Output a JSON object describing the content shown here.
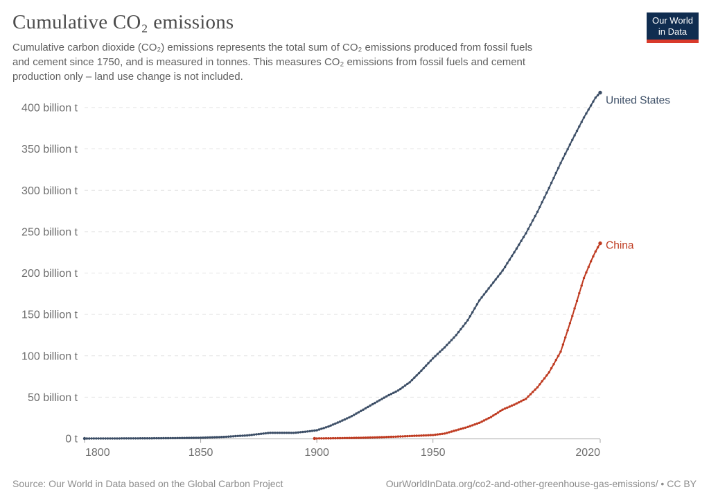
{
  "header": {
    "title": "Cumulative CO₂ emissions",
    "subtitle_lines": [
      "Cumulative carbon dioxide (CO₂) emissions represents the total sum of CO₂ emissions produced from fossil fuels",
      "and cement since 1750, and is measured in tonnes. This measures CO₂ emissions from fossil fuels and cement",
      "production only – land use change is not included."
    ],
    "logo": {
      "line1": "Our World",
      "line2": "in Data"
    }
  },
  "footer": {
    "source": "Source: Our World in Data based on the Global Carbon Project",
    "url": "OurWorldInData.org/co2-and-other-greenhouse-gas-emissions/",
    "bullet": "•",
    "license": "CC BY"
  },
  "colors": {
    "united_states": "#3C4E66",
    "china": "#BF3B21",
    "grid": "#e2e2e2",
    "axis": "#a3a3a3",
    "tick_text": "#6e6e6e",
    "logo_navy": "#102d50",
    "logo_red": "#d93a2b"
  },
  "chart_data": {
    "type": "line",
    "title": "Cumulative CO₂ emissions",
    "unit": "billion t",
    "xlabel": "",
    "ylabel": "",
    "x_domain": [
      1800,
      2022
    ],
    "y_domain": [
      0,
      400
    ],
    "x_ticks": [
      1800,
      1850,
      1900,
      1950,
      2020
    ],
    "y_ticks": [
      {
        "value": 0,
        "label": "0 t"
      },
      {
        "value": 50,
        "label": "50 billion t"
      },
      {
        "value": 100,
        "label": "100 billion t"
      },
      {
        "value": 150,
        "label": "150 billion t"
      },
      {
        "value": 200,
        "label": "200 billion t"
      },
      {
        "value": 250,
        "label": "250 billion t"
      },
      {
        "value": 300,
        "label": "300 billion t"
      },
      {
        "value": 350,
        "label": "350 billion t"
      },
      {
        "value": 400,
        "label": "400 billion t"
      }
    ],
    "grid": "horizontal-dashed",
    "legend_position": "end-of-line-labels",
    "marker": "circle-every-year",
    "series": [
      {
        "name": "United States",
        "color": "#3C4E66",
        "label_dy": 16,
        "anchors": [
          [
            1800,
            0.03
          ],
          [
            1810,
            0.08
          ],
          [
            1820,
            0.16
          ],
          [
            1830,
            0.3
          ],
          [
            1840,
            0.55
          ],
          [
            1850,
            1.0
          ],
          [
            1860,
            2.0
          ],
          [
            1870,
            3.8
          ],
          [
            1880,
            7
          ],
          [
            1890,
            6.9
          ],
          [
            1895,
            8.2
          ],
          [
            1900,
            10
          ],
          [
            1905,
            14.5
          ],
          [
            1910,
            20.5
          ],
          [
            1915,
            27
          ],
          [
            1920,
            35
          ],
          [
            1925,
            43
          ],
          [
            1930,
            51
          ],
          [
            1935,
            58
          ],
          [
            1940,
            68
          ],
          [
            1945,
            82
          ],
          [
            1950,
            97
          ],
          [
            1955,
            110
          ],
          [
            1960,
            125
          ],
          [
            1965,
            143
          ],
          [
            1970,
            167
          ],
          [
            1975,
            185
          ],
          [
            1980,
            203
          ],
          [
            1985,
            225
          ],
          [
            1990,
            248
          ],
          [
            1995,
            274
          ],
          [
            2000,
            303
          ],
          [
            2005,
            333
          ],
          [
            2010,
            361
          ],
          [
            2015,
            388
          ],
          [
            2020,
            412
          ],
          [
            2022,
            418
          ]
        ]
      },
      {
        "name": "China",
        "color": "#BF3B21",
        "label_dy": 8,
        "anchors": [
          [
            1899,
            0.1
          ],
          [
            1905,
            0.25
          ],
          [
            1910,
            0.45
          ],
          [
            1915,
            0.7
          ],
          [
            1920,
            1.0
          ],
          [
            1925,
            1.4
          ],
          [
            1930,
            1.9
          ],
          [
            1935,
            2.4
          ],
          [
            1940,
            3.0
          ],
          [
            1945,
            3.6
          ],
          [
            1950,
            4.3
          ],
          [
            1955,
            6
          ],
          [
            1960,
            10
          ],
          [
            1965,
            14
          ],
          [
            1970,
            19
          ],
          [
            1975,
            26
          ],
          [
            1980,
            35
          ],
          [
            1985,
            41
          ],
          [
            1990,
            48
          ],
          [
            1995,
            62
          ],
          [
            2000,
            80
          ],
          [
            2005,
            105
          ],
          [
            2010,
            148
          ],
          [
            2015,
            194
          ],
          [
            2018,
            214
          ],
          [
            2020,
            226
          ],
          [
            2022,
            236
          ]
        ]
      }
    ]
  }
}
